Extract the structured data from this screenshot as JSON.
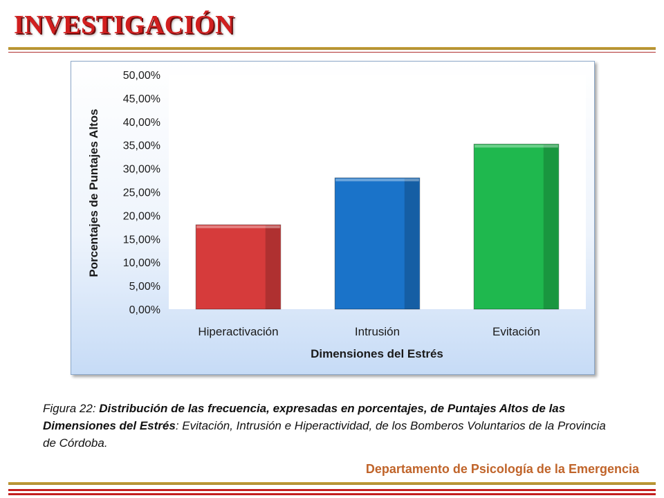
{
  "title": "INVESTIGACIÓN",
  "caption": {
    "part1": "Figura 22: ",
    "part2": "Distribución de las frecuencia, expresadas en porcentajes, de Puntajes Altos de las Dimensiones del Estrés",
    "part3": ": Evitación, Intrusión e Hiperactividad, de los Bomberos Voluntarios  de la Provincia de Córdoba."
  },
  "footer": "Departamento de Psicología de la Emergencia",
  "chart_data": {
    "type": "bar",
    "categories": [
      "Hiperactivación",
      "Intrusión",
      "Evitación"
    ],
    "values": [
      18.0,
      28.0,
      35.2
    ],
    "colors": [
      "#d63b3b",
      "#1a73c9",
      "#1fb84e"
    ],
    "xlabel": "Dimensiones del Estrés",
    "ylabel": "Porcentajes de Puntajes Altos",
    "ylim": [
      0,
      50
    ],
    "ytick_step": 5,
    "ytick_labels": [
      "0,00%",
      "5,00%",
      "10,00%",
      "15,00%",
      "20,00%",
      "25,00%",
      "30,00%",
      "35,00%",
      "40,00%",
      "45,00%",
      "50,00%"
    ],
    "grid": false,
    "legend": "none"
  }
}
